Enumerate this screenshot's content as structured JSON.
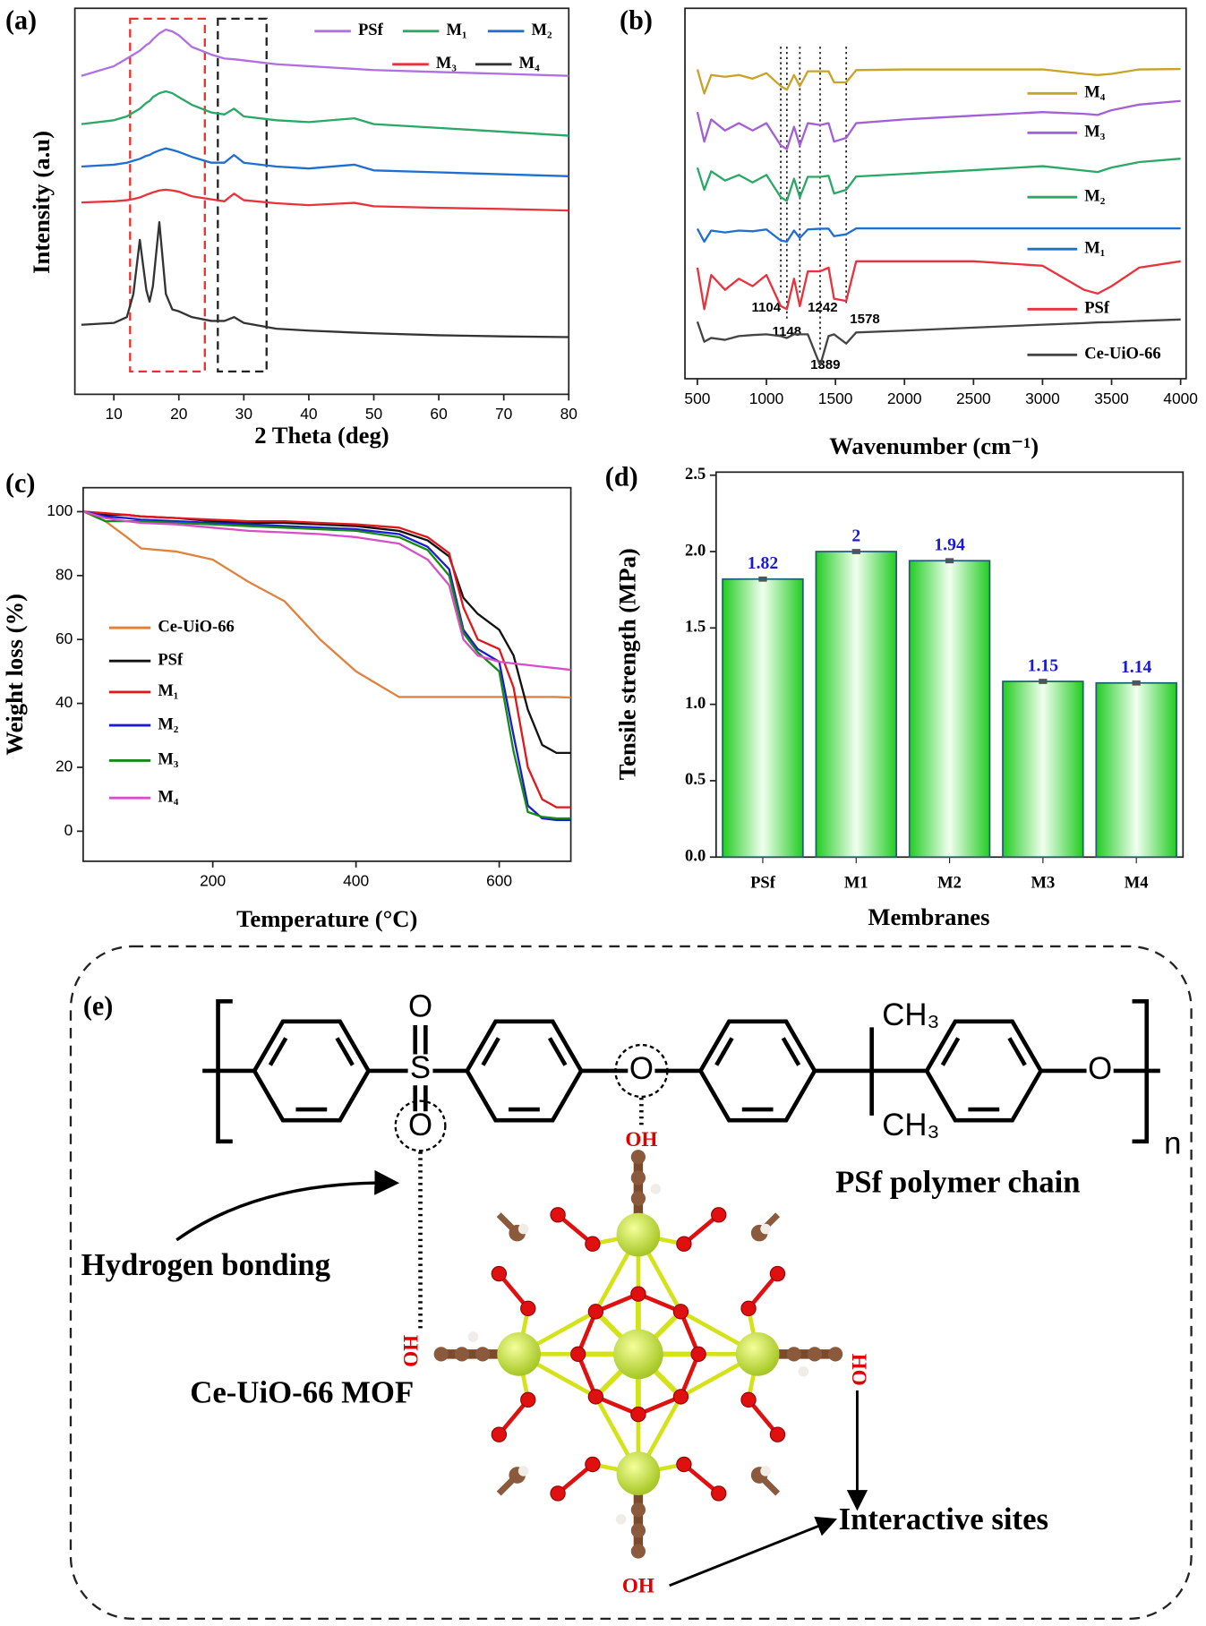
{
  "chart_data": [
    {
      "type": "line",
      "panel_label": "(a)",
      "xlabel": "2 Theta (deg)",
      "ylabel": "Intensity (a.u)",
      "x": [
        5,
        10,
        12,
        13,
        14,
        15,
        15.5,
        16,
        17,
        18,
        19,
        20,
        22,
        25,
        27,
        28.5,
        30,
        35,
        40,
        47,
        50,
        60,
        70,
        80
      ],
      "xlim": [
        4,
        80
      ],
      "xticks": [
        10,
        20,
        30,
        40,
        50,
        60,
        70,
        80
      ],
      "ylim": [
        0,
        100
      ],
      "regions": [
        {
          "x": [
            12.5,
            24
          ],
          "color": "#e8322e"
        },
        {
          "x": [
            26,
            33.5
          ],
          "color": "#222222"
        }
      ],
      "series": [
        {
          "name": "PSf",
          "color": "#b070e0",
          "values": [
            82.5,
            85,
            87,
            88,
            89,
            90.5,
            91,
            92,
            93.5,
            94.5,
            94,
            93,
            90,
            88,
            87,
            86.8,
            86.5,
            85.5,
            85,
            84.3,
            84,
            83.5,
            83,
            82.5
          ]
        },
        {
          "name": "M₁",
          "color": "#2aa866",
          "values": [
            70,
            71,
            72,
            73,
            74,
            75.5,
            76,
            77,
            78,
            78.5,
            78,
            77,
            75,
            73,
            72.5,
            74,
            72,
            71,
            70.5,
            71.5,
            70,
            69,
            68,
            67
          ]
        },
        {
          "name": "M₂",
          "color": "#1f6fd1",
          "values": [
            59,
            59.5,
            60,
            60.5,
            61,
            61.8,
            62,
            62.5,
            63.2,
            63.7,
            63.3,
            62.8,
            61.5,
            60,
            60,
            62,
            60,
            59,
            58.5,
            59.5,
            58,
            57.5,
            57,
            56.5
          ]
        },
        {
          "name": "M₃",
          "color": "#e8323c",
          "values": [
            49.7,
            50,
            50.3,
            50.6,
            51,
            51.7,
            52,
            52.3,
            52.8,
            53,
            52.8,
            52.5,
            51.3,
            50.5,
            50,
            52,
            50.3,
            49.5,
            49,
            49.6,
            48.7,
            48.3,
            48,
            47.6
          ]
        },
        {
          "name": "M₄",
          "color": "#333333",
          "values": [
            18,
            18.5,
            20,
            26,
            40,
            27,
            24,
            28,
            44.6,
            26,
            22,
            21.5,
            20,
            19,
            19,
            20,
            18.5,
            17,
            16.5,
            16,
            15.8,
            15.3,
            15,
            14.8
          ]
        }
      ]
    },
    {
      "type": "line",
      "panel_label": "(b)",
      "xlabel": "Wavenumber (cm⁻¹)",
      "x": [
        500,
        550,
        600,
        700,
        800,
        900,
        1000,
        1104,
        1148,
        1200,
        1242,
        1300,
        1389,
        1450,
        1490,
        1578,
        1650,
        2000,
        2500,
        3000,
        3300,
        3400,
        3500,
        3700,
        4000
      ],
      "xlim": [
        410,
        4040
      ],
      "xticks": [
        500,
        1000,
        1500,
        2000,
        2500,
        3000,
        3500,
        4000
      ],
      "ylim": [
        0,
        100
      ],
      "peak_labels": [
        1104,
        1148,
        1242,
        1578,
        1389
      ],
      "series": [
        {
          "name": "Ce-UiO-66",
          "color": "#444444",
          "values": [
            15.4,
            10,
            11,
            10.5,
            11.5,
            11.8,
            12,
            11.5,
            11,
            12,
            12,
            12,
            3.6,
            11.5,
            12,
            9.5,
            12.5,
            13,
            13.8,
            14.6,
            15,
            15.2,
            15.3,
            15.6,
            16
          ]
        },
        {
          "name": "PSf",
          "color": "#e8323c",
          "values": [
            30,
            18.8,
            28,
            24,
            27,
            25,
            28,
            19.6,
            18.8,
            27,
            19.6,
            29,
            29,
            30,
            21.6,
            21,
            31.7,
            31.7,
            31.7,
            30.5,
            24,
            23,
            25,
            30,
            31.7
          ]
        },
        {
          "name": "M₁",
          "color": "#1f6fd1",
          "values": [
            40.5,
            37,
            40,
            39.5,
            40,
            39.8,
            40.3,
            37.3,
            37,
            40,
            38,
            40.3,
            40.5,
            40.5,
            38.5,
            39,
            40.6,
            40.6,
            40.6,
            40.6,
            40.6,
            40.6,
            40.6,
            40.6,
            40.6
          ]
        },
        {
          "name": "M₂",
          "color": "#2aa866",
          "values": [
            57,
            51,
            56,
            53.5,
            55,
            53,
            55,
            49,
            48,
            54,
            49,
            54.5,
            54.5,
            54.8,
            50,
            51,
            54.6,
            55.3,
            56.3,
            57.4,
            56.2,
            55.8,
            57,
            58.5,
            59.4
          ]
        },
        {
          "name": "M₃",
          "color": "#a35fd6",
          "values": [
            72,
            64,
            70,
            67,
            69,
            67,
            69,
            63,
            62,
            68,
            63,
            69,
            68.5,
            69,
            64,
            65,
            69,
            70,
            71,
            72,
            71.5,
            71.2,
            72.5,
            74,
            75
          ]
        },
        {
          "name": "M₄",
          "color": "#c9a227",
          "values": [
            83.5,
            77,
            82,
            81.5,
            82,
            81,
            82.5,
            79,
            78,
            82,
            79,
            83,
            83,
            83,
            80,
            80,
            83.3,
            83.5,
            83.5,
            83.5,
            82.3,
            82,
            82.3,
            83.5,
            83.6
          ]
        }
      ]
    },
    {
      "type": "line",
      "panel_label": "(c)",
      "xlabel": "Temperature (°C)",
      "ylabel": "Weight loss (%)",
      "x": [
        20,
        50,
        80,
        100,
        150,
        200,
        250,
        300,
        350,
        400,
        460,
        500,
        530,
        550,
        570,
        600,
        620,
        640,
        660,
        680,
        700
      ],
      "xlim": [
        19,
        700
      ],
      "xticks": [
        200,
        400,
        600
      ],
      "ylim": [
        -9.4,
        107.5
      ],
      "yticks": [
        0,
        20,
        40,
        60,
        80,
        100
      ],
      "series": [
        {
          "name": "Ce-UiO-66",
          "color": "#e0823d",
          "values": [
            100,
            97,
            92,
            88.5,
            87.5,
            85,
            78,
            72,
            60,
            50,
            42,
            42,
            42,
            42,
            42,
            42,
            42,
            42,
            42,
            42,
            41.8
          ]
        },
        {
          "name": "PSf",
          "color": "#111111",
          "values": [
            100,
            99,
            99,
            98.5,
            98,
            97,
            96.5,
            96.5,
            96,
            95.5,
            94,
            91,
            86,
            73,
            68,
            63,
            55,
            38,
            27,
            24.5,
            24.5
          ]
        },
        {
          "name": "M₁",
          "color": "#e0181b",
          "values": [
            100,
            99.5,
            99,
            98.5,
            98,
            97.5,
            97,
            97,
            96.5,
            96,
            95,
            92,
            87,
            70,
            60,
            57,
            45,
            20,
            10,
            7.5,
            7.5
          ]
        },
        {
          "name": "M₂",
          "color": "#1b1bd6",
          "values": [
            100,
            98.5,
            98,
            97.5,
            97,
            96.5,
            96,
            95.5,
            95,
            94.5,
            93,
            89,
            82,
            63,
            57,
            53,
            30,
            8,
            4,
            3.5,
            3.5
          ]
        },
        {
          "name": "M₃",
          "color": "#158a15",
          "values": [
            100,
            97,
            97,
            97,
            96.5,
            96,
            95.5,
            95,
            94.5,
            94,
            92,
            88,
            80,
            62,
            56,
            50,
            25,
            6,
            4.5,
            4,
            4
          ]
        },
        {
          "name": "M₄",
          "color": "#d64fc8",
          "values": [
            100,
            98,
            97,
            96.5,
            96,
            95,
            94,
            93.5,
            93,
            92,
            90,
            85,
            77,
            60,
            55,
            53,
            52.5,
            52,
            51.5,
            51,
            50.5
          ]
        }
      ]
    },
    {
      "type": "bar",
      "panel_label": "(d)",
      "xlabel": "Membranes",
      "ylabel": "Tensile strength (MPa)",
      "categories": [
        "PSf",
        "M1",
        "M2",
        "M3",
        "M4"
      ],
      "values": [
        1.82,
        2,
        1.94,
        1.15,
        1.14
      ],
      "errors": [
        0.01,
        0.01,
        0.01,
        0.01,
        0.01
      ],
      "color": "#2fd62f",
      "ylim": [
        0,
        2.52
      ],
      "yticks": [
        {
          "value": 0,
          "label": "0.0"
        },
        0.5,
        {
          "value": 1,
          "label": "1.0"
        },
        1.5,
        {
          "value": 2,
          "label": "2.0"
        },
        2.5
      ]
    }
  ],
  "diagram": {
    "panel_label": "(e)",
    "polymer_atoms": [
      "O",
      "S",
      "O",
      "O",
      "O",
      "CH₃",
      "CH₃",
      "n"
    ],
    "hydroxyl_labels": [
      "OH",
      "OH",
      "HO",
      "OH"
    ],
    "polymer_caption": "PSf polymer chain",
    "bond_caption": "Hydrogen bonding",
    "mof_caption": "Ce-UiO-66 MOF",
    "sites_caption": "Interactive sites"
  }
}
